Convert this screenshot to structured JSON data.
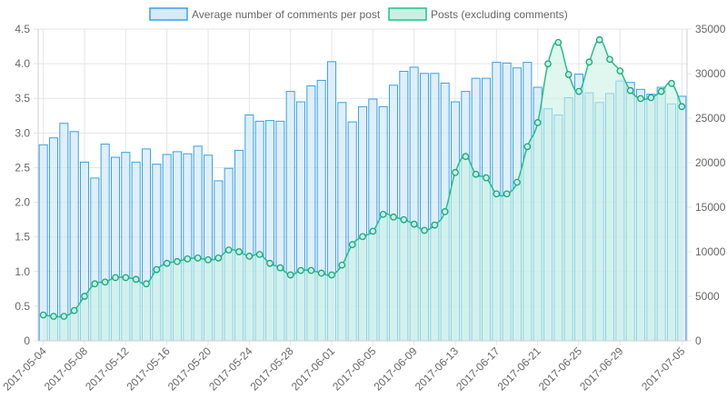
{
  "chart_data": {
    "type": "bar",
    "legend_position": "top",
    "grid": true,
    "categories": [
      "2017-05-04",
      "2017-05-05",
      "2017-05-06",
      "2017-05-07",
      "2017-05-08",
      "2017-05-09",
      "2017-05-10",
      "2017-05-11",
      "2017-05-12",
      "2017-05-13",
      "2017-05-14",
      "2017-05-15",
      "2017-05-16",
      "2017-05-17",
      "2017-05-18",
      "2017-05-19",
      "2017-05-20",
      "2017-05-21",
      "2017-05-22",
      "2017-05-23",
      "2017-05-24",
      "2017-05-25",
      "2017-05-26",
      "2017-05-27",
      "2017-05-28",
      "2017-05-29",
      "2017-05-30",
      "2017-05-31",
      "2017-06-01",
      "2017-06-02",
      "2017-06-03",
      "2017-06-04",
      "2017-06-05",
      "2017-06-06",
      "2017-06-07",
      "2017-06-08",
      "2017-06-09",
      "2017-06-10",
      "2017-06-11",
      "2017-06-12",
      "2017-06-13",
      "2017-06-14",
      "2017-06-15",
      "2017-06-16",
      "2017-06-17",
      "2017-06-18",
      "2017-06-19",
      "2017-06-20",
      "2017-06-21",
      "2017-06-22",
      "2017-06-23",
      "2017-06-24",
      "2017-06-25",
      "2017-06-26",
      "2017-06-27",
      "2017-06-28",
      "2017-06-29",
      "2017-06-30",
      "2017-07-01",
      "2017-07-02",
      "2017-07-03",
      "2017-07-04",
      "2017-07-05"
    ],
    "x_tick_labels": [
      "2017-05-04",
      "2017-05-08",
      "2017-05-12",
      "2017-05-16",
      "2017-05-20",
      "2017-05-24",
      "2017-05-28",
      "2017-06-01",
      "2017-06-05",
      "2017-06-09",
      "2017-06-13",
      "2017-06-17",
      "2017-06-21",
      "2017-06-25",
      "2017-06-29",
      "2017-07-05"
    ],
    "series": [
      {
        "name": "Average number of comments per post",
        "type": "bar",
        "axis": "left",
        "color": "#36a2eb",
        "fill": "#d6eaf8",
        "values": [
          2.83,
          2.93,
          3.14,
          3.02,
          2.58,
          2.35,
          2.84,
          2.65,
          2.72,
          2.58,
          2.77,
          2.55,
          2.69,
          2.73,
          2.7,
          2.81,
          2.68,
          2.31,
          2.49,
          2.75,
          3.26,
          3.17,
          3.18,
          3.17,
          3.6,
          3.45,
          3.68,
          3.76,
          4.03,
          3.44,
          3.16,
          3.38,
          3.49,
          3.38,
          3.69,
          3.89,
          3.95,
          3.86,
          3.86,
          3.72,
          3.45,
          3.6,
          3.79,
          3.79,
          4.02,
          4.01,
          3.94,
          4.02,
          3.66,
          3.35,
          3.26,
          3.51,
          3.85,
          3.58,
          3.44,
          3.57,
          3.75,
          3.73,
          3.63,
          3.56,
          3.66,
          3.42,
          3.53
        ]
      },
      {
        "name": "Posts (excluding comments)",
        "type": "line",
        "axis": "right",
        "color": "#1ec28b",
        "fill": "#c9f1e3",
        "values": [
          2900,
          2750,
          2750,
          3400,
          5000,
          6400,
          6600,
          7100,
          7100,
          6900,
          6400,
          8000,
          8700,
          8900,
          9200,
          9300,
          9100,
          9300,
          10200,
          10000,
          9500,
          9700,
          8700,
          8200,
          7400,
          7900,
          7900,
          7600,
          7400,
          8500,
          10800,
          11700,
          12300,
          14200,
          13900,
          13600,
          13100,
          12400,
          13000,
          14500,
          18900,
          20700,
          18700,
          18300,
          16500,
          16500,
          17800,
          21800,
          24500,
          31100,
          33500,
          29900,
          28000,
          31300,
          33800,
          31600,
          30300,
          28100,
          27200,
          27300,
          28000,
          28900,
          26300
        ]
      }
    ],
    "y_left": {
      "min": 0,
      "max": 4.5,
      "ticks": [
        "0",
        "0.5",
        "1.0",
        "1.5",
        "2.0",
        "2.5",
        "3.0",
        "3.5",
        "4.0",
        "4.5"
      ]
    },
    "y_right": {
      "min": 0,
      "max": 35000,
      "ticks": [
        "0",
        "5000",
        "10000",
        "15000",
        "20000",
        "25000",
        "30000",
        "35000"
      ]
    }
  }
}
